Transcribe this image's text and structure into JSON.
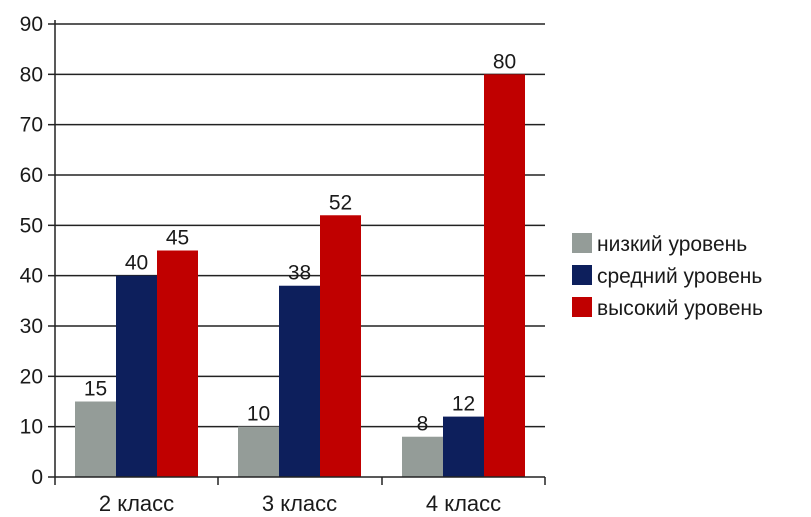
{
  "chart_data": {
    "type": "bar",
    "title": "",
    "xlabel": "",
    "ylabel": "",
    "categories": [
      "2 класс",
      "3 класс",
      "4 класс"
    ],
    "ylim": [
      0,
      90
    ],
    "yticks": [
      0,
      10,
      20,
      30,
      40,
      50,
      60,
      70,
      80,
      90
    ],
    "grid": true,
    "legend_position": "right",
    "series": [
      {
        "name": "низкий уровень",
        "color": "#949c98",
        "values": [
          15,
          10,
          8
        ],
        "labels": [
          "15",
          "10",
          "8"
        ]
      },
      {
        "name": "средний уровень",
        "color": "#0d1f5c",
        "values": [
          40,
          38,
          12
        ],
        "labels": [
          "40",
          "38",
          "12"
        ]
      },
      {
        "name": "высокий уровень",
        "color": "#c00000",
        "values": [
          45,
          52,
          80
        ],
        "labels": [
          "45",
          "52",
          "80"
        ]
      }
    ]
  }
}
